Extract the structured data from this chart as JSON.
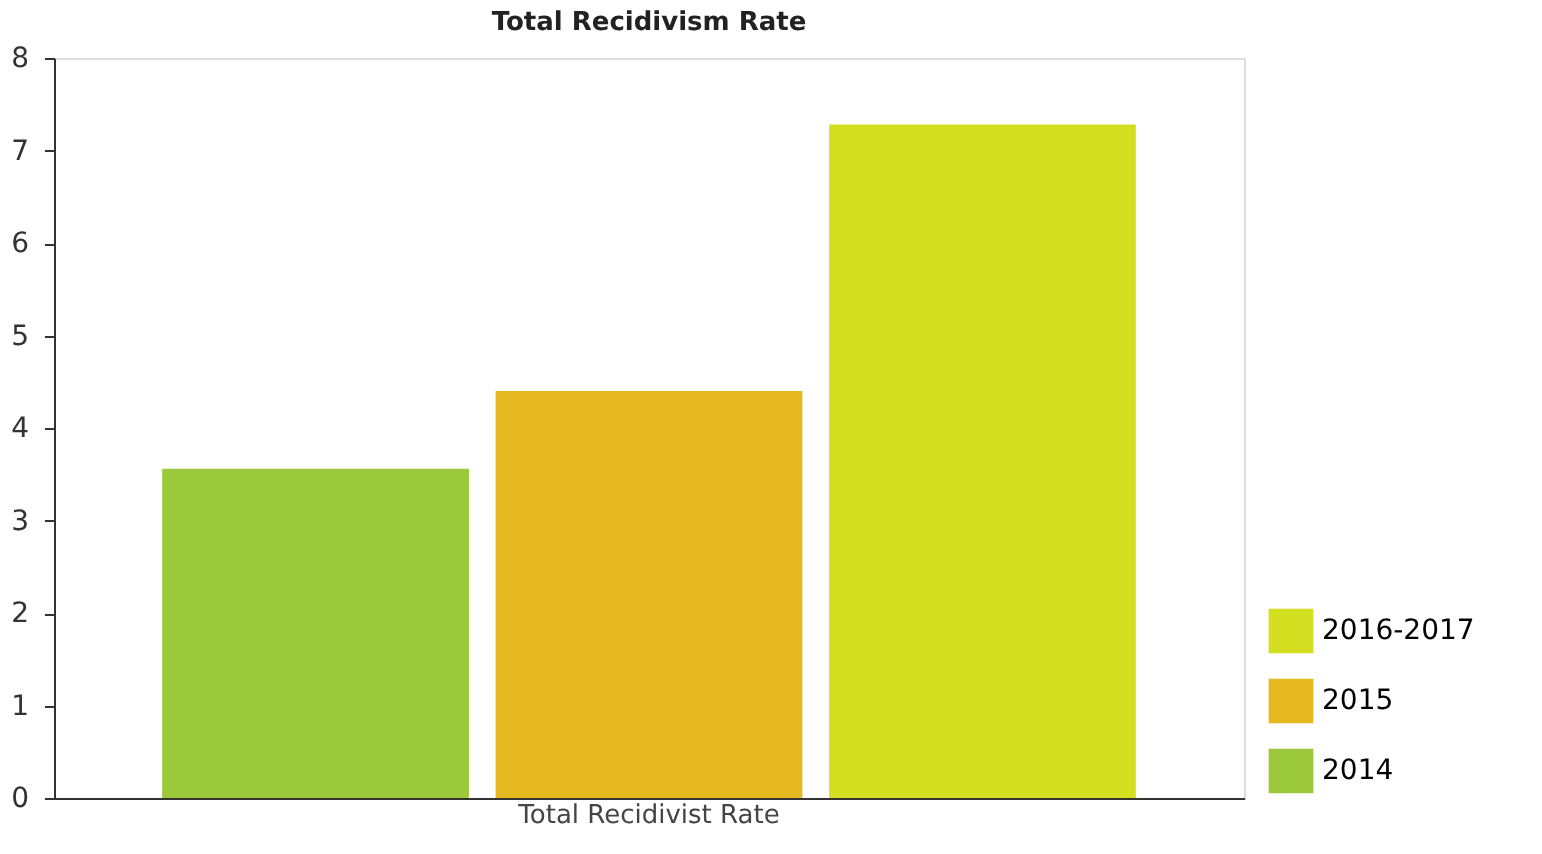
{
  "chart_data": {
    "type": "bar",
    "title": "Total Recidivism Rate",
    "categories": [
      "Total Recidivist Rate"
    ],
    "series": [
      {
        "name": "2014",
        "color": "#9cc83c",
        "values": [
          3.56
        ]
      },
      {
        "name": "2015",
        "color": "#e6b820",
        "values": [
          4.4
        ]
      },
      {
        "name": "2016-2017",
        "color": "#d5df22",
        "values": [
          7.28
        ]
      }
    ],
    "ylim": [
      0,
      8
    ],
    "yticks": [
      0,
      1,
      2,
      3,
      4,
      5,
      6,
      7,
      8
    ],
    "grid": false,
    "legend": "bottom right"
  }
}
